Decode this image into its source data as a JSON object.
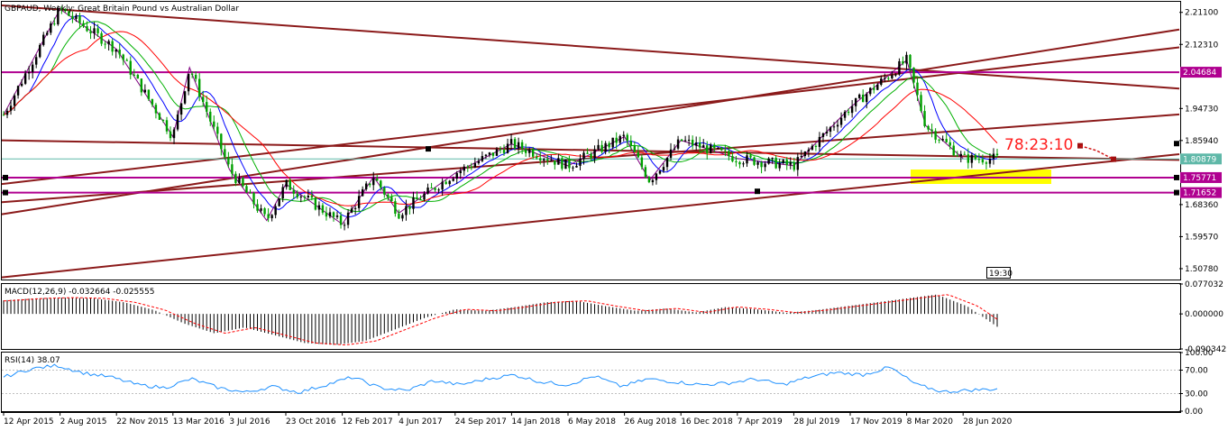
{
  "chart_data": [
    {
      "type": "candlestick",
      "symbol": "GBPAUD",
      "timeframe": "Weekly",
      "title": "GBPAUD, Weekly:  Great Britain Pound vs Australian Dollar",
      "ylim": [
        1.478,
        2.24
      ],
      "y_ticks": [
        "2.21100",
        "2.12310",
        "1.94730",
        "1.85940",
        "1.68360",
        "1.59570",
        "1.50780"
      ],
      "x_ticks": [
        "12 Apr 2015",
        "2 Aug 2015",
        "22 Nov 2015",
        "13 Mar 2016",
        "3 Jul 2016",
        "23 Oct 2016",
        "12 Feb 2017",
        "4 Jun 2017",
        "24 Sep 2017",
        "14 Jan 2018",
        "6 May 2018",
        "26 Aug 2018",
        "16 Dec 2018",
        "7 Apr 2019",
        "28 Jul 2019",
        "17 Nov 2019",
        "8 Mar 2020",
        "28 Jun 2020"
      ],
      "price_path": [
        [
          "12 Apr 2015",
          1.93
        ],
        [
          "2 Aug 2015",
          2.22
        ],
        [
          "22 Nov 2015",
          2.11
        ],
        [
          "13 Mar 2016",
          1.87
        ],
        [
          "Apr 2016",
          2.06
        ],
        [
          "3 Jul 2016",
          1.78
        ],
        [
          "Sep 2016",
          1.64
        ],
        [
          "23 Oct 2016",
          1.74
        ],
        [
          "12 Feb 2017",
          1.63
        ],
        [
          "Apr 2017",
          1.76
        ],
        [
          "4 Jun 2017",
          1.66
        ],
        [
          "24 Sep 2017",
          1.77
        ],
        [
          "14 Jan 2018",
          1.85
        ],
        [
          "6 May 2018",
          1.79
        ],
        [
          "26 Aug 2018",
          1.87
        ],
        [
          "Oct 2018",
          1.75
        ],
        [
          "16 Dec 2018",
          1.86
        ],
        [
          "7 Apr 2019",
          1.81
        ],
        [
          "28 Jul 2019",
          1.79
        ],
        [
          "17 Nov 2019",
          1.95
        ],
        [
          "8 Mar 2020",
          2.08
        ],
        [
          "Apr 2020",
          1.9
        ],
        [
          "28 Jun 2020",
          1.81
        ]
      ],
      "price_labels": [
        {
          "value": "2.04684",
          "color": "#b00090"
        },
        {
          "value": "1.80879",
          "color": "#5fb8a8"
        },
        {
          "value": "1.75771",
          "color": "#b00090"
        },
        {
          "value": "1.71652",
          "color": "#b00090"
        }
      ],
      "horizontal_levels": [
        2.04684,
        1.75771,
        1.71652
      ],
      "current_price": 1.80879,
      "annotations": [
        "78:23:10",
        "19:30"
      ],
      "colors": {
        "up": "#000000",
        "down": "#00a000",
        "trendline": "#8b1a1a",
        "level": "#b00090",
        "zone": "#ffff00",
        "ma_blue": "#0000ff",
        "ma_green": "#00b000",
        "ma_red": "#ff0000",
        "zigzag": "#800080"
      }
    },
    {
      "type": "bar",
      "title": "MACD(12,26,9) -0.032664 -0.025555",
      "macd": -0.032664,
      "signal": -0.025555,
      "ylim": [
        -0.0903,
        0.077
      ],
      "y_ticks": [
        "0.077032",
        "0.000000",
        "-0.090342"
      ],
      "values": [
        0.035,
        0.04,
        0.042,
        0.04,
        0.03,
        0.01,
        -0.025,
        -0.05,
        -0.035,
        -0.055,
        -0.075,
        -0.08,
        -0.07,
        -0.04,
        -0.01,
        0.012,
        0.008,
        0.018,
        0.03,
        0.034,
        0.02,
        0.008,
        0.014,
        0.004,
        0.018,
        0.012,
        0.003,
        0.01,
        0.02,
        0.03,
        0.04,
        0.05,
        0.02,
        -0.033
      ],
      "colors": {
        "histogram": "#000000",
        "signal": "#ff0000"
      }
    },
    {
      "type": "line",
      "title": "RSI(14) 38.07",
      "value": 38.07,
      "ylim": [
        0,
        100
      ],
      "y_ticks": [
        "100.00",
        "70.00",
        "30.00",
        "0.00"
      ],
      "levels": [
        70,
        30
      ],
      "values": [
        58,
        72,
        78,
        65,
        58,
        45,
        40,
        55,
        40,
        32,
        42,
        32,
        45,
        58,
        40,
        35,
        52,
        45,
        55,
        62,
        50,
        45,
        60,
        42,
        55,
        50,
        45,
        48,
        55,
        45,
        58,
        66,
        62,
        75,
        45,
        33,
        36,
        38
      ],
      "colors": {
        "line": "#1e90ff"
      }
    }
  ],
  "ui": {
    "title": "GBPAUD, Weekly:  Great Britain Pound vs Australian Dollar",
    "time_box": "19:30"
  }
}
